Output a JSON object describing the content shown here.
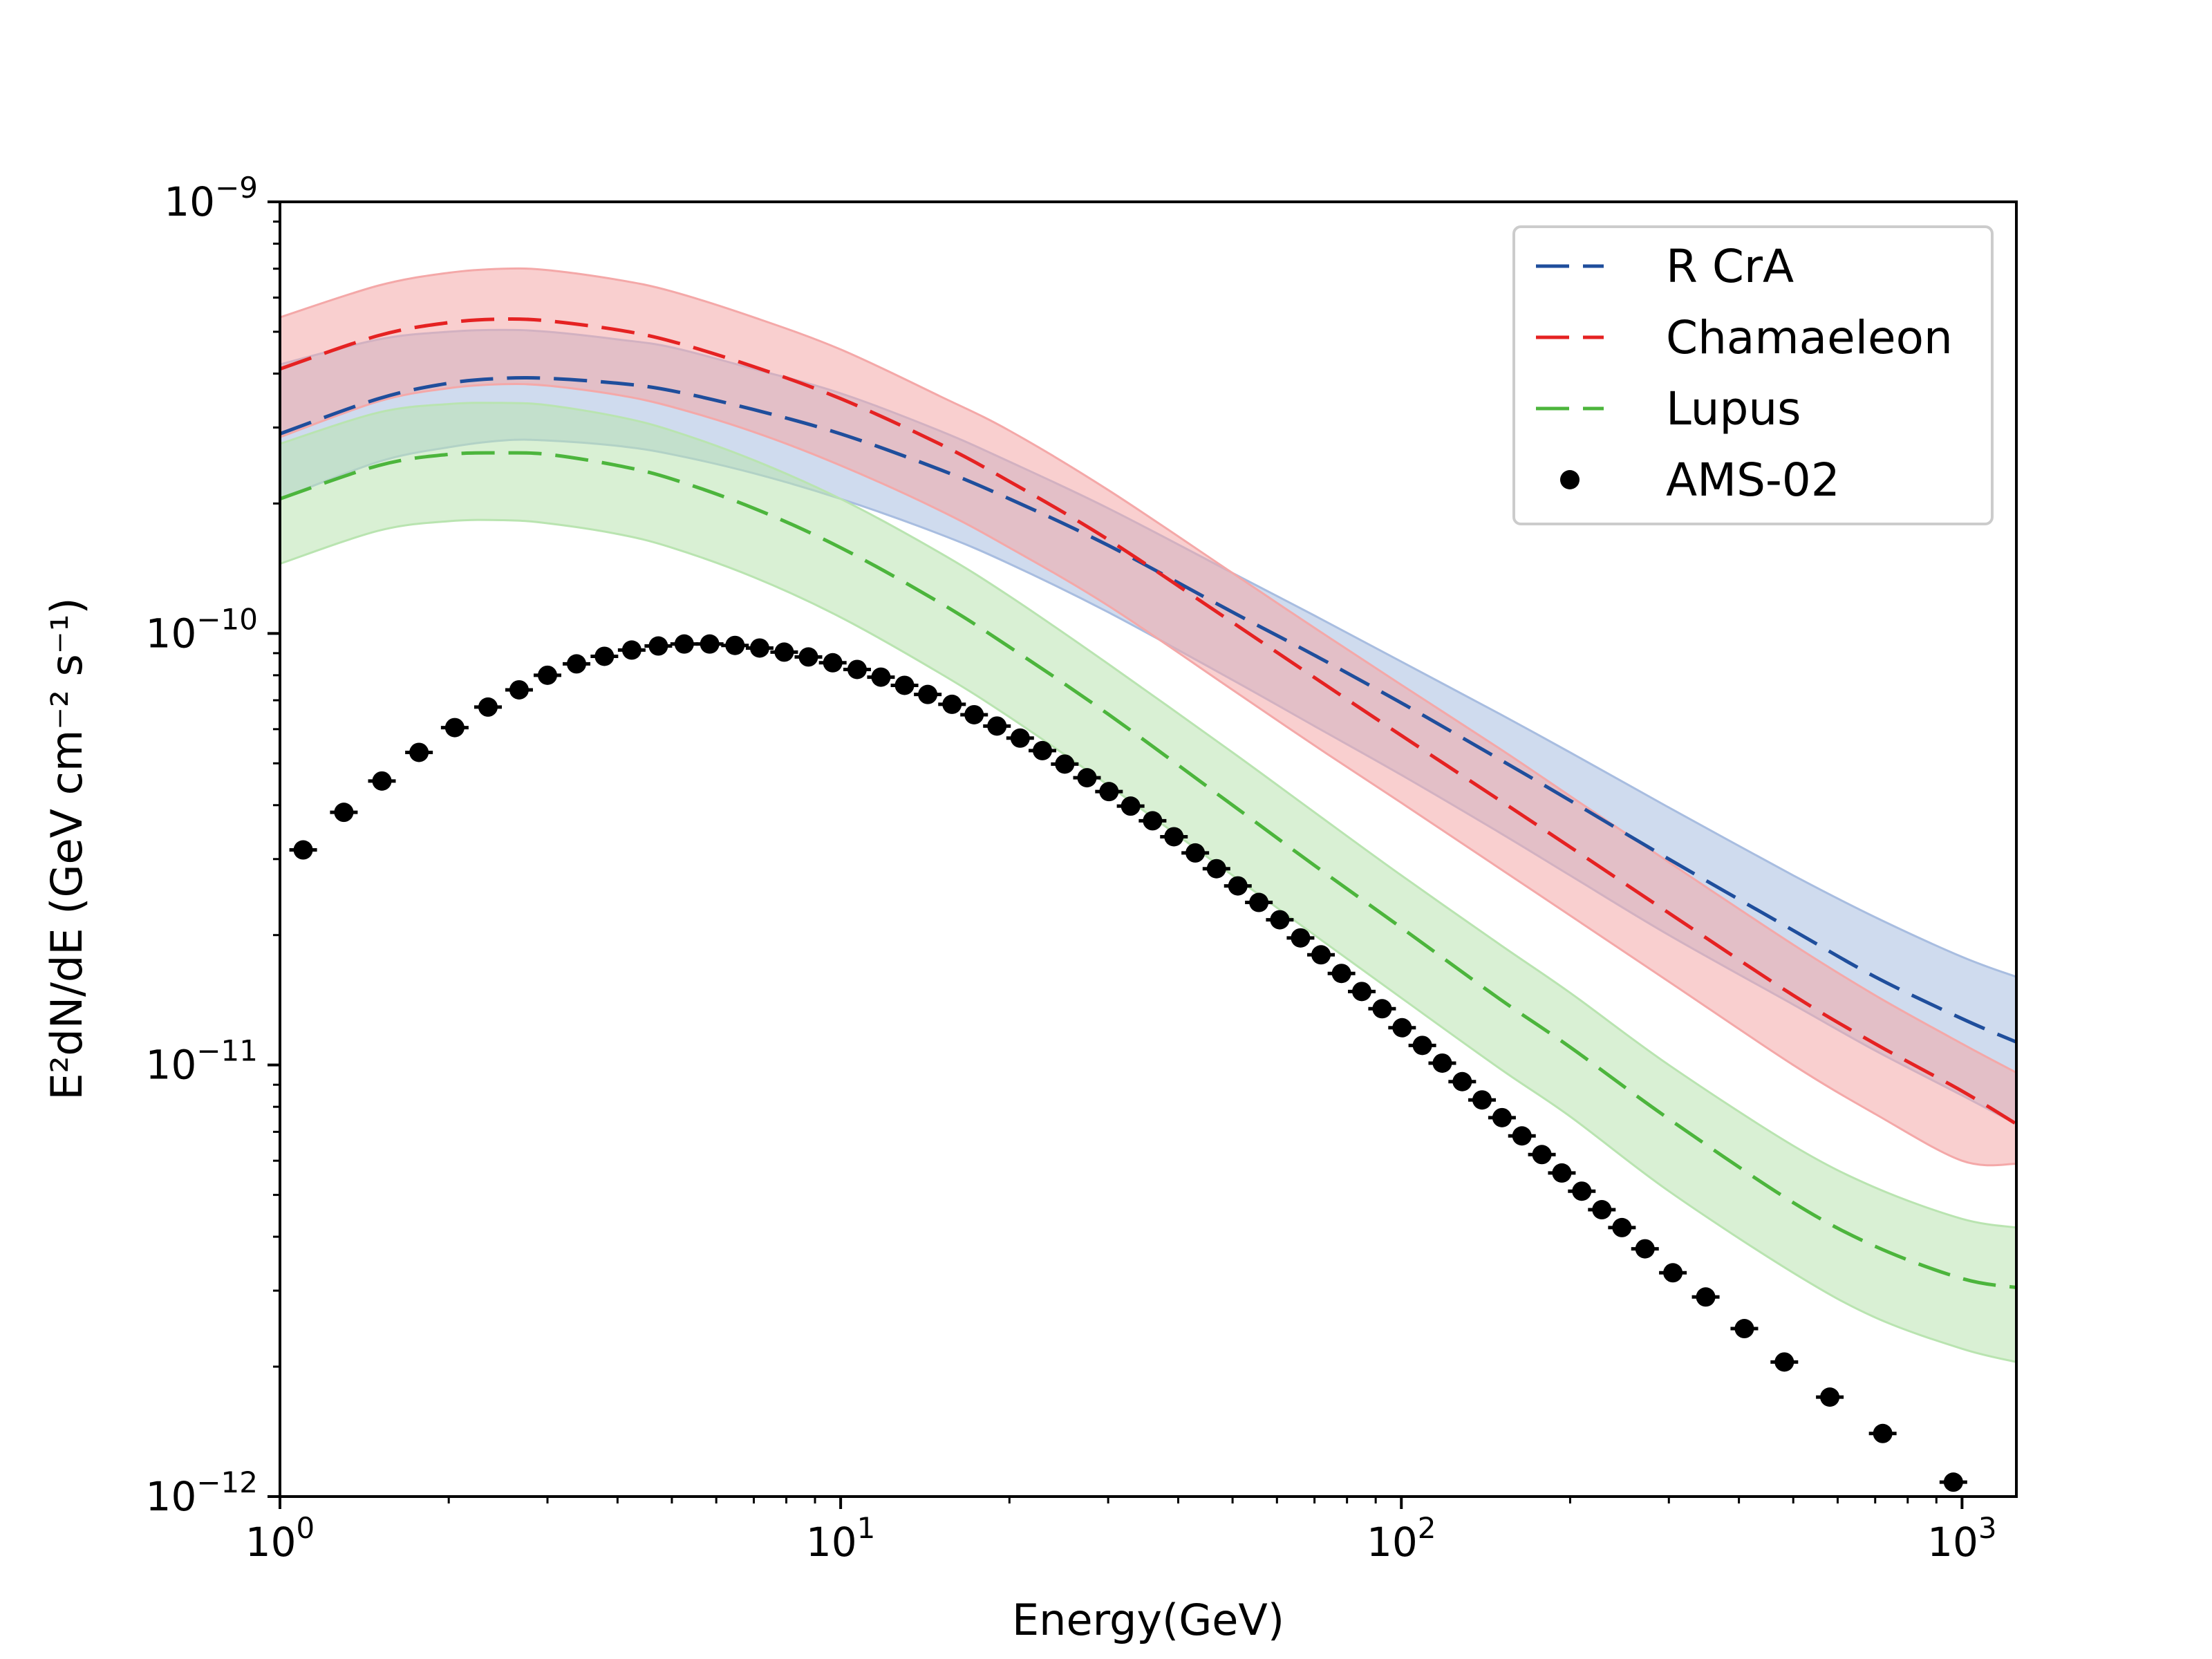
{
  "chart_data": {
    "type": "line",
    "title": "",
    "xlabel": "Energy(GeV)",
    "ylabel": "E²dN/dE (GeV cm⁻² s⁻¹)",
    "xscale": "log",
    "yscale": "log",
    "xlim": [
      1,
      1250
    ],
    "ylim": [
      1e-12,
      1e-09
    ],
    "grid": false,
    "legend_position": "top-right",
    "x_ticks": [
      {
        "value": 1,
        "base": "10",
        "exp": "0"
      },
      {
        "value": 10,
        "base": "10",
        "exp": "1"
      },
      {
        "value": 100,
        "base": "10",
        "exp": "2"
      },
      {
        "value": 1000,
        "base": "10",
        "exp": "3"
      }
    ],
    "y_ticks": [
      {
        "value": 1e-12,
        "base": "10",
        "exp": "−12"
      },
      {
        "value": 1e-11,
        "base": "10",
        "exp": "−11"
      },
      {
        "value": 1e-10,
        "base": "10",
        "exp": "−10"
      },
      {
        "value": 1e-09,
        "base": "10",
        "exp": "−9"
      }
    ],
    "series": [
      {
        "name": "R CrA",
        "color": "#1f4e9c",
        "band_color": "#a8bde0",
        "style": "dashed",
        "x": [
          1,
          1.5,
          2,
          2.5,
          3,
          4,
          5,
          7,
          10,
          15,
          20,
          30,
          50,
          70,
          100,
          150,
          200,
          300,
          500,
          700,
          1000,
          1250
        ],
        "y": [
          2.9e-10,
          3.5e-10,
          3.8e-10,
          3.9e-10,
          3.9e-10,
          3.8e-10,
          3.65e-10,
          3.3e-10,
          2.9e-10,
          2.4e-10,
          2.05e-10,
          1.6e-10,
          1.12e-10,
          8.9e-11,
          6.9e-11,
          5.1e-11,
          4.1e-11,
          3e-11,
          2.05e-11,
          1.6e-11,
          1.28e-11,
          1.13e-11
        ],
        "upper": [
          4.2e-10,
          4.8e-10,
          5e-10,
          5.05e-10,
          5e-10,
          4.8e-10,
          4.6e-10,
          4.1e-10,
          3.6e-10,
          2.95e-10,
          2.5e-10,
          1.95e-10,
          1.38e-10,
          1.1e-10,
          8.6e-11,
          6.5e-11,
          5.3e-11,
          3.95e-11,
          2.75e-11,
          2.2e-11,
          1.78e-11,
          1.6e-11
        ],
        "lower": [
          2.05e-10,
          2.5e-10,
          2.7e-10,
          2.8e-10,
          2.8e-10,
          2.72e-10,
          2.6e-10,
          2.35e-10,
          2.05e-10,
          1.7e-10,
          1.45e-10,
          1.12e-10,
          7.8e-11,
          6.1e-11,
          4.7e-11,
          3.45e-11,
          2.75e-11,
          2e-11,
          1.38e-11,
          1.08e-11,
          8.5e-12,
          7.3e-12
        ]
      },
      {
        "name": "Chamaeleon",
        "color": "#e52222",
        "band_color": "#f4a8a8",
        "style": "dashed",
        "x": [
          1,
          1.5,
          2,
          2.5,
          3,
          4,
          5,
          7,
          10,
          15,
          20,
          30,
          50,
          70,
          100,
          150,
          200,
          300,
          500,
          700,
          1000,
          1250
        ],
        "y": [
          4.1e-10,
          4.9e-10,
          5.25e-10,
          5.35e-10,
          5.3e-10,
          5.05e-10,
          4.75e-10,
          4.15e-10,
          3.5e-10,
          2.75e-10,
          2.25e-10,
          1.65e-10,
          1.06e-10,
          7.9e-11,
          5.8e-11,
          4.1e-11,
          3.2e-11,
          2.25e-11,
          1.45e-11,
          1.12e-11,
          8.7e-12,
          7.3e-12
        ],
        "upper": [
          5.4e-10,
          6.4e-10,
          6.85e-10,
          7e-10,
          6.95e-10,
          6.6e-10,
          6.2e-10,
          5.4e-10,
          4.55e-10,
          3.55e-10,
          2.95e-10,
          2.15e-10,
          1.38e-10,
          1.03e-10,
          7.6e-11,
          5.4e-11,
          4.2e-11,
          2.95e-11,
          1.9e-11,
          1.45e-11,
          1.12e-11,
          9.6e-12
        ],
        "lower": [
          2.85e-10,
          3.45e-10,
          3.7e-10,
          3.78e-10,
          3.75e-10,
          3.57e-10,
          3.35e-10,
          2.93e-10,
          2.45e-10,
          1.93e-10,
          1.58e-10,
          1.16e-10,
          7.4e-11,
          5.5e-11,
          4.05e-11,
          2.85e-11,
          2.22e-11,
          1.56e-11,
          1e-11,
          7.7e-12,
          6e-12,
          5.9e-12
        ]
      },
      {
        "name": "Lupus",
        "color": "#4cb53c",
        "band_color": "#b9e4b0",
        "style": "dashed",
        "x": [
          1,
          1.5,
          2,
          2.5,
          3,
          4,
          5,
          7,
          10,
          15,
          20,
          30,
          50,
          70,
          100,
          150,
          200,
          300,
          500,
          700,
          1000,
          1250
        ],
        "y": [
          2.05e-10,
          2.45e-10,
          2.6e-10,
          2.62e-10,
          2.6e-10,
          2.45e-10,
          2.28e-10,
          1.95e-10,
          1.58e-10,
          1.18e-10,
          9.3e-11,
          6.5e-11,
          4e-11,
          2.9e-11,
          2.08e-11,
          1.42e-11,
          1.1e-11,
          7.5e-12,
          4.8e-12,
          3.8e-12,
          3.2e-12,
          3.05e-12
        ],
        "upper": [
          2.75e-10,
          3.25e-10,
          3.4e-10,
          3.42e-10,
          3.38e-10,
          3.18e-10,
          2.95e-10,
          2.52e-10,
          2.05e-10,
          1.54e-10,
          1.22e-10,
          8.5e-11,
          5.3e-11,
          3.85e-11,
          2.75e-11,
          1.9e-11,
          1.47e-11,
          1e-11,
          6.5e-12,
          5.2e-12,
          4.4e-12,
          4.2e-12
        ],
        "lower": [
          1.45e-10,
          1.73e-10,
          1.82e-10,
          1.83e-10,
          1.8e-10,
          1.7e-10,
          1.58e-10,
          1.35e-10,
          1.09e-10,
          8.1e-11,
          6.4e-11,
          4.45e-11,
          2.75e-11,
          2e-11,
          1.43e-11,
          9.8e-12,
          7.6e-12,
          5.1e-12,
          3.3e-12,
          2.6e-12,
          2.2e-12,
          2.05e-12
        ]
      },
      {
        "name": "AMS-02",
        "color": "#000000",
        "style": "points",
        "x": [
          1.1,
          1.3,
          1.52,
          1.77,
          2.05,
          2.35,
          2.67,
          3.0,
          3.38,
          3.79,
          4.24,
          4.73,
          5.26,
          5.84,
          6.48,
          7.17,
          7.93,
          8.76,
          9.68,
          10.7,
          11.8,
          13.0,
          14.3,
          15.8,
          17.3,
          19.0,
          20.9,
          22.9,
          25.1,
          27.5,
          30.1,
          32.9,
          36.0,
          39.3,
          42.9,
          46.8,
          51.1,
          55.7,
          60.7,
          66.1,
          71.9,
          78.2,
          85.0,
          92.4,
          100.3,
          109.0,
          118.3,
          128.4,
          139.3,
          151.2,
          164.1,
          178.1,
          193.3,
          209.8,
          227.8,
          247.4,
          272.0,
          305.0,
          349.0,
          409.0,
          482.0,
          581.0,
          722.0,
          965.0
        ],
        "y": [
          3.15e-11,
          3.85e-11,
          4.55e-11,
          5.3e-11,
          6.05e-11,
          6.75e-11,
          7.4e-11,
          8e-11,
          8.5e-11,
          8.85e-11,
          9.15e-11,
          9.35e-11,
          9.45e-11,
          9.45e-11,
          9.38e-11,
          9.25e-11,
          9.05e-11,
          8.82e-11,
          8.55e-11,
          8.25e-11,
          7.92e-11,
          7.58e-11,
          7.22e-11,
          6.85e-11,
          6.48e-11,
          6.1e-11,
          5.72e-11,
          5.35e-11,
          4.98e-11,
          4.63e-11,
          4.3e-11,
          3.98e-11,
          3.68e-11,
          3.38e-11,
          3.1e-11,
          2.85e-11,
          2.6e-11,
          2.38e-11,
          2.17e-11,
          1.97e-11,
          1.8e-11,
          1.63e-11,
          1.48e-11,
          1.35e-11,
          1.22e-11,
          1.11e-11,
          1.01e-11,
          9.15e-12,
          8.3e-12,
          7.55e-12,
          6.85e-12,
          6.2e-12,
          5.62e-12,
          5.1e-12,
          4.62e-12,
          4.2e-12,
          3.75e-12,
          3.3e-12,
          2.9e-12,
          2.45e-12,
          2.05e-12,
          1.7e-12,
          1.4e-12,
          1.08e-12
        ]
      }
    ]
  }
}
